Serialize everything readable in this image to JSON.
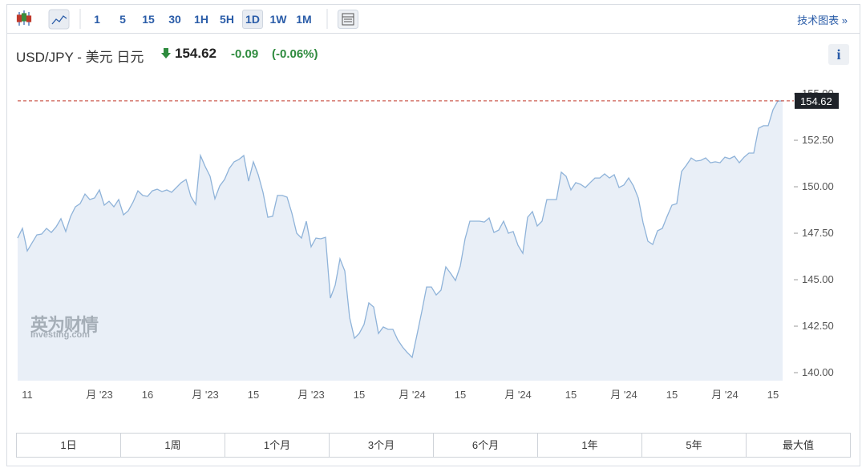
{
  "toolbar": {
    "intervals": [
      "1",
      "5",
      "15",
      "30",
      "1H",
      "5H",
      "1D",
      "1W",
      "1M"
    ],
    "selected_interval": 6,
    "technical_chart": "技术图表 »"
  },
  "header": {
    "symbol": "USD/JPY - 美元 日元",
    "price": 154.62,
    "change": -0.09,
    "change_percent": "(-0.06%)",
    "info": "i"
  },
  "watermark": {
    "cn": "英为财情",
    "en": "Investing.com"
  },
  "ranges": [
    "1日",
    "1周",
    "1个月",
    "3个月",
    "6个月",
    "1年",
    "5年",
    "最大值"
  ],
  "chart_data": {
    "type": "area",
    "color": "#8fb3d9",
    "fill": "#e9eff7",
    "values": [
      147.24,
      147.76,
      146.55,
      146.98,
      147.41,
      147.46,
      147.76,
      147.54,
      147.84,
      148.28,
      147.59,
      148.4,
      148.92,
      149.09,
      149.61,
      149.31,
      149.4,
      149.83,
      149.01,
      149.22,
      148.92,
      149.31,
      148.49,
      148.71,
      149.18,
      149.78,
      149.53,
      149.48,
      149.78,
      149.87,
      149.74,
      149.83,
      149.7,
      149.96,
      150.22,
      150.39,
      149.48,
      149.05,
      151.68,
      151.08,
      150.56,
      149.35,
      150.04,
      150.39,
      150.99,
      151.34,
      151.47,
      151.68,
      150.3,
      151.34,
      150.65,
      149.7,
      148.36,
      148.41,
      149.53,
      149.53,
      149.44,
      148.58,
      147.5,
      147.24,
      148.15,
      146.77,
      147.24,
      147.2,
      147.28,
      144.01,
      144.7,
      146.12,
      145.47,
      142.97,
      141.85,
      142.11,
      142.59,
      143.75,
      143.53,
      142.11,
      142.46,
      142.33,
      142.33,
      141.77,
      141.38,
      141.08,
      140.82,
      142.03,
      143.28,
      144.61,
      144.61,
      144.18,
      144.44,
      145.69,
      145.34,
      144.96,
      145.73,
      147.2,
      148.15,
      148.15,
      148.15,
      148.1,
      148.32,
      147.54,
      147.67,
      148.15,
      147.5,
      147.59,
      146.85,
      146.42,
      148.36,
      148.66,
      147.89,
      148.15,
      149.31,
      149.31,
      149.31,
      150.78,
      150.56,
      149.83,
      150.22,
      150.13,
      149.96,
      150.22,
      150.47,
      150.47,
      150.69,
      150.47,
      150.65,
      149.96,
      150.09,
      150.47,
      150.04,
      149.4,
      148.06,
      147.07,
      146.9,
      147.63,
      147.76,
      148.41,
      149.01,
      149.09,
      150.82,
      151.16,
      151.55,
      151.38,
      151.42,
      151.55,
      151.29,
      151.34,
      151.29,
      151.59,
      151.51,
      151.64,
      151.29,
      151.59,
      151.81,
      151.81,
      153.15,
      153.28,
      153.28,
      154.14,
      154.61,
      154.62
    ],
    "xlim": [
      0,
      159
    ],
    "xticks": [
      {
        "value": 2,
        "label": "11"
      },
      {
        "value": 17,
        "label": "月 '23"
      },
      {
        "value": 27,
        "label": "16"
      },
      {
        "value": 39,
        "label": "月 '23"
      },
      {
        "value": 49,
        "label": "15"
      },
      {
        "value": 61,
        "label": "月 '23"
      },
      {
        "value": 71,
        "label": "15"
      },
      {
        "value": 82,
        "label": "月 '24"
      },
      {
        "value": 92,
        "label": "15"
      },
      {
        "value": 104,
        "label": "月 '24"
      },
      {
        "value": 115,
        "label": "15"
      },
      {
        "value": 126,
        "label": "月 '24"
      },
      {
        "value": 136,
        "label": "15"
      },
      {
        "value": 147,
        "label": "月 '24"
      },
      {
        "value": 157,
        "label": "15"
      }
    ],
    "ylim": [
      139.57,
      155.95
    ],
    "yticks": [
      {
        "value": 140,
        "label": "140.00"
      },
      {
        "value": 142.5,
        "label": "142.50"
      },
      {
        "value": 145,
        "label": "145.00"
      },
      {
        "value": 147.5,
        "label": "147.50"
      },
      {
        "value": 150,
        "label": "150.00"
      },
      {
        "value": 152.5,
        "label": "152.50"
      },
      {
        "value": 155,
        "label": "155.00"
      }
    ],
    "last_price": 154.62,
    "last_price_color": "#c0392b"
  }
}
